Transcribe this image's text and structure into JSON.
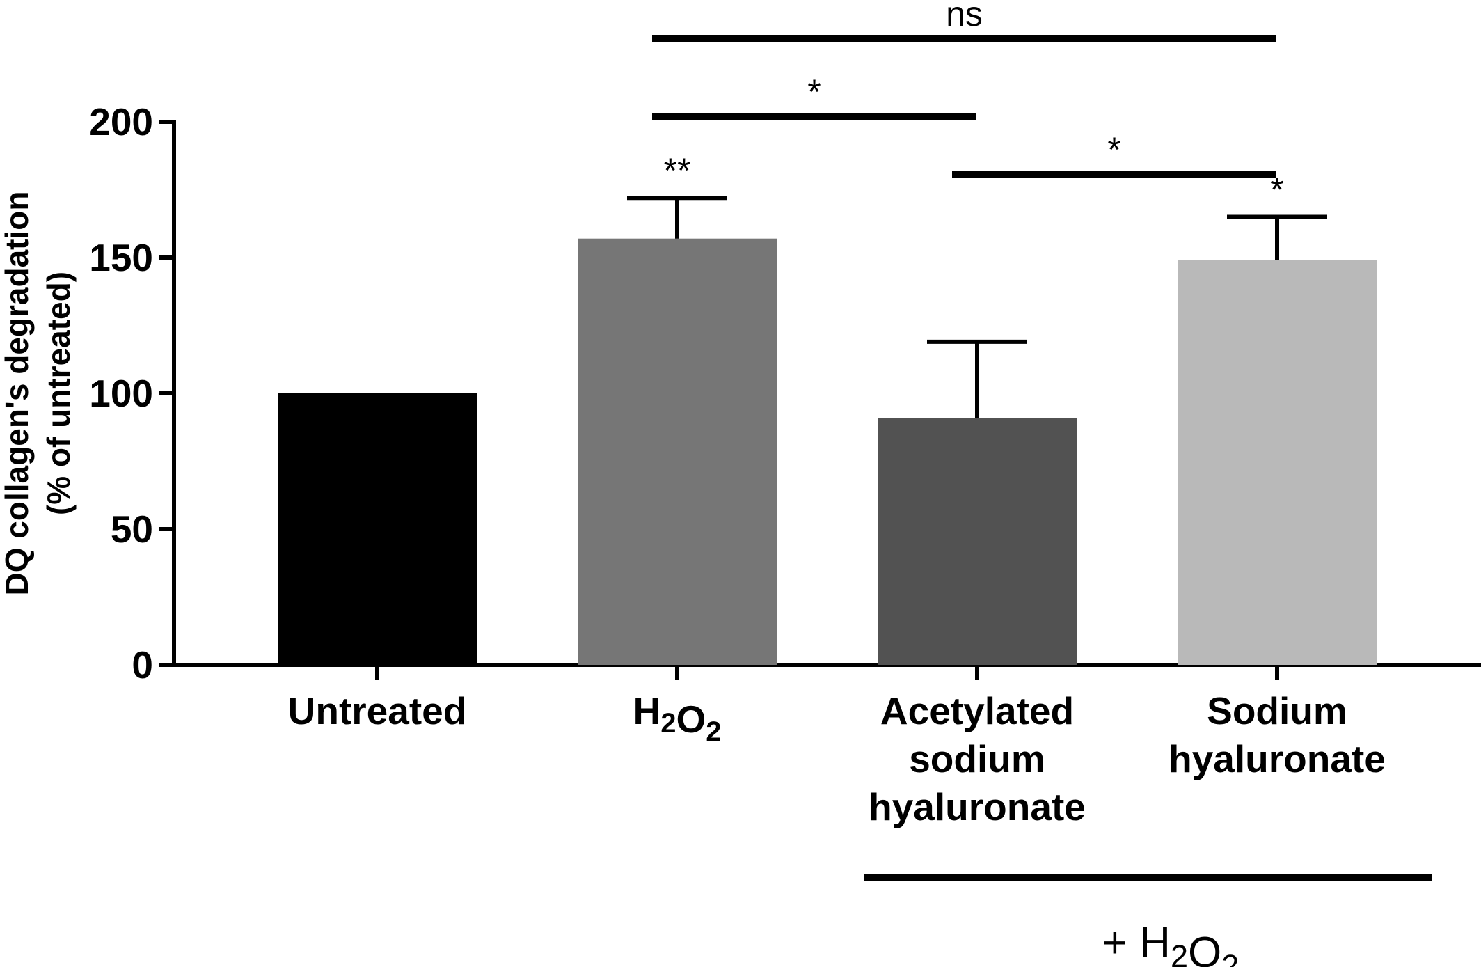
{
  "chart_data": {
    "type": "bar",
    "categories": [
      [
        "Untreated"
      ],
      [
        "H2O2"
      ],
      [
        "Acetylated",
        "sodium",
        "hyaluronate"
      ],
      [
        "Sodium",
        "hyaluronate"
      ]
    ],
    "values": [
      100,
      157,
      91,
      149
    ],
    "errors": [
      0,
      15,
      28,
      16
    ],
    "bar_colors": [
      "#000000",
      "#767676",
      "#525252",
      "#b9b9b9"
    ],
    "ylabel": [
      "DQ collagen's degradation",
      "(% of untreated)"
    ],
    "ylim": [
      0,
      200
    ],
    "yticks": [
      0,
      50,
      100,
      150,
      200
    ],
    "bar_annotations": [
      "",
      "**",
      "",
      "*"
    ],
    "comparisons": [
      {
        "from": 1,
        "to": 3,
        "label": "ns",
        "level": 3
      },
      {
        "from": 1,
        "to": 2,
        "label": "*",
        "level": 2
      },
      {
        "from": 2,
        "to": 3,
        "label": "*",
        "level": 1
      }
    ],
    "group_label": "+ H2O2",
    "group_bars": [
      2,
      3
    ]
  }
}
